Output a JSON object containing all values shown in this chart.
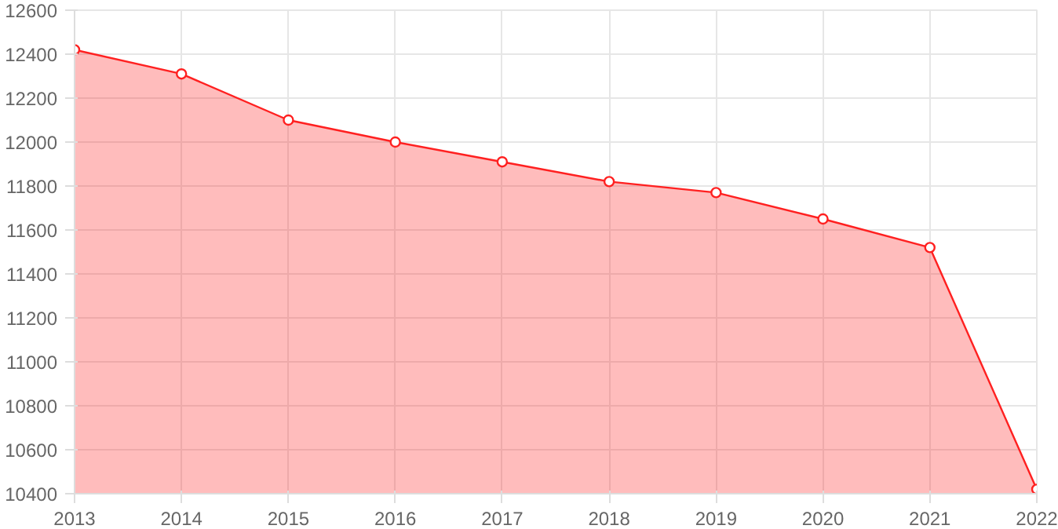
{
  "chart_data": {
    "type": "area",
    "x": [
      2013,
      2014,
      2015,
      2016,
      2017,
      2018,
      2019,
      2020,
      2021,
      2022
    ],
    "series": [
      {
        "color": "#ff2020",
        "values": [
          12420,
          12310,
          12100,
          12000,
          11910,
          11820,
          11770,
          11650,
          11520,
          10420
        ]
      }
    ],
    "xlim": [
      2013,
      2022
    ],
    "xticks": [
      2013,
      2014,
      2015,
      2016,
      2017,
      2018,
      2019,
      2020,
      2021,
      2022
    ],
    "ylim": [
      10400,
      12600
    ],
    "yticks": [
      10400,
      10600,
      10800,
      11000,
      11200,
      11400,
      11600,
      11800,
      12000,
      12200,
      12400,
      12600
    ],
    "grid": true,
    "marker": "circle"
  }
}
